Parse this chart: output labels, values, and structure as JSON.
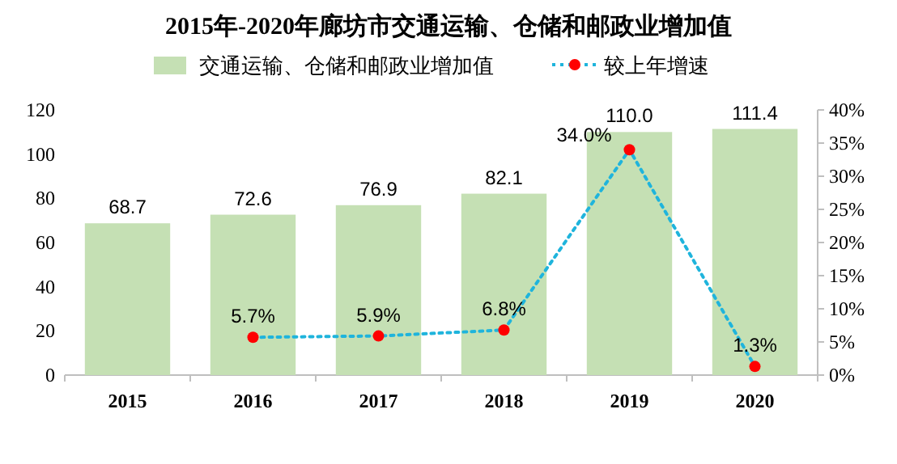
{
  "chart_data": {
    "type": "bar",
    "title": "2015年-2020年廊坊市交通运输、仓储和邮政业增加值",
    "categories": [
      "2015",
      "2016",
      "2017",
      "2018",
      "2019",
      "2020"
    ],
    "series": [
      {
        "name": "交通运输、仓储和邮政业增加值",
        "color": "#c5e0b4",
        "values": [
          68.7,
          72.6,
          76.9,
          82.1,
          110.0,
          111.4
        ],
        "value_labels": [
          "68.7",
          "72.6",
          "76.9",
          "82.1",
          "110.0",
          "111.4"
        ]
      },
      {
        "name": "较上年增速",
        "type": "line",
        "axis": "y2",
        "color": "#1fb4dc",
        "colors": [
          "#ff0000",
          "#ff0000",
          "#ff0000",
          "#ff0000",
          "#ff0000",
          "#ff0000"
        ],
        "marker": "circle",
        "line_style": "dotted",
        "values": [
          null,
          5.7,
          5.9,
          6.8,
          34.0,
          1.3
        ],
        "value_labels": [
          null,
          "5.7%",
          "5.9%",
          "6.8%",
          "34.0%",
          "1.3%"
        ]
      }
    ],
    "ylim": [
      0,
      120
    ],
    "yticks": [
      0,
      20,
      40,
      60,
      80,
      100,
      120
    ],
    "y2lim": [
      0,
      40
    ],
    "y2ticks": [
      {
        "value": 0,
        "label": "0%"
      },
      {
        "value": 5,
        "label": "5%"
      },
      {
        "value": 10,
        "label": "10%"
      },
      {
        "value": 15,
        "label": "15%"
      },
      {
        "value": 20,
        "label": "20%"
      },
      {
        "value": 25,
        "label": "25%"
      },
      {
        "value": 30,
        "label": "30%"
      },
      {
        "value": 35,
        "label": "35%"
      },
      {
        "value": 40,
        "label": "40%"
      }
    ],
    "legend": "top",
    "grid": false
  }
}
